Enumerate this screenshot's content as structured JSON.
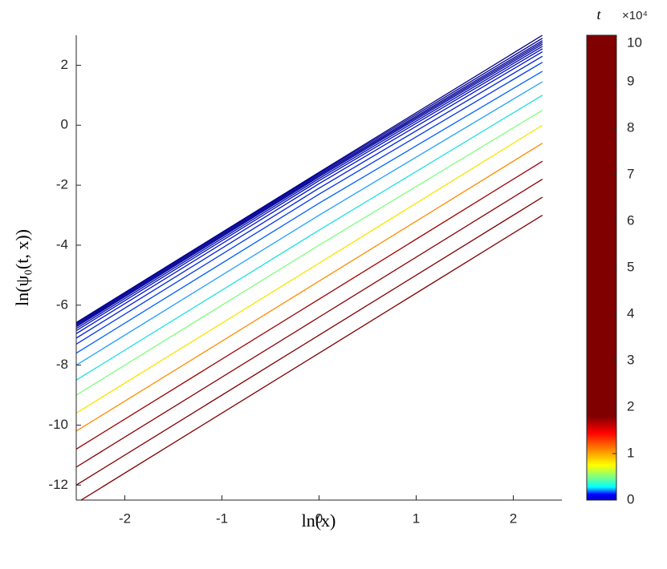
{
  "chart_data": {
    "type": "line",
    "x_label": "ln(x)",
    "y_label": "ln(ψ₀(t, x))",
    "x": [
      -2.5,
      0,
      2.3
    ],
    "xlim": [
      -2.5,
      2.5
    ],
    "xticks": [
      -2,
      -1,
      0,
      1,
      2
    ],
    "ylim": [
      -12.5,
      3
    ],
    "yticks": [
      -12,
      -10,
      -8,
      -6,
      -4,
      -2,
      0,
      2
    ],
    "grid": false,
    "series": [
      {
        "color": "#800000",
        "values": [
          -12.6,
          -7.6,
          -3.0
        ]
      },
      {
        "color": "#800000",
        "values": [
          -12.0,
          -7.0,
          -2.4
        ]
      },
      {
        "color": "#8a0000",
        "values": [
          -11.4,
          -6.4,
          -1.8
        ]
      },
      {
        "color": "#a00000",
        "values": [
          -10.8,
          -5.8,
          -1.2
        ]
      },
      {
        "color": "#ff8c00",
        "values": [
          -10.2,
          -5.2,
          -0.6
        ]
      },
      {
        "color": "#f5e600",
        "values": [
          -9.6,
          -4.6,
          0.0
        ]
      },
      {
        "color": "#7fff7f",
        "values": [
          -9.0,
          -4.0,
          0.5
        ]
      },
      {
        "color": "#20e0e0",
        "values": [
          -8.5,
          -3.5,
          1.0
        ]
      },
      {
        "color": "#1e9fff",
        "values": [
          -8.0,
          -3.0,
          1.45
        ]
      },
      {
        "color": "#0060ff",
        "values": [
          -7.6,
          -2.6,
          1.8
        ]
      },
      {
        "color": "#0038f0",
        "values": [
          -7.3,
          -2.3,
          2.1
        ]
      },
      {
        "color": "#0020d8",
        "values": [
          -7.1,
          -2.1,
          2.3
        ]
      },
      {
        "color": "#0014c8",
        "values": [
          -6.95,
          -1.95,
          2.45
        ]
      },
      {
        "color": "#000cb8",
        "values": [
          -6.85,
          -1.85,
          2.55
        ]
      },
      {
        "color": "#0008ac",
        "values": [
          -6.78,
          -1.78,
          2.63
        ]
      },
      {
        "color": "#0004a0",
        "values": [
          -6.72,
          -1.72,
          2.7
        ]
      },
      {
        "color": "#000098",
        "values": [
          -6.68,
          -1.68,
          2.76
        ]
      },
      {
        "color": "#000092",
        "values": [
          -6.64,
          -1.64,
          2.82
        ]
      },
      {
        "color": "#00008f",
        "values": [
          -6.6,
          -1.6,
          2.9
        ]
      },
      {
        "color": "#00008b",
        "values": [
          -6.58,
          -1.57,
          3.0
        ]
      }
    ],
    "colorbar": {
      "label": "t",
      "scale_label": "×10⁴",
      "lim": [
        0,
        10
      ],
      "ticks": [
        0,
        1,
        2,
        3,
        4,
        5,
        6,
        7,
        8,
        9,
        10
      ],
      "stops": [
        {
          "value": 0,
          "color": "#0000c0"
        },
        {
          "value": 0.12,
          "color": "#0000ff"
        },
        {
          "value": 0.28,
          "color": "#00ffff"
        },
        {
          "value": 0.5,
          "color": "#80ff80"
        },
        {
          "value": 0.75,
          "color": "#ffff00"
        },
        {
          "value": 1.1,
          "color": "#ff8000"
        },
        {
          "value": 1.45,
          "color": "#ff0000"
        },
        {
          "value": 1.8,
          "color": "#800000"
        },
        {
          "value": 10,
          "color": "#800000"
        }
      ]
    }
  }
}
